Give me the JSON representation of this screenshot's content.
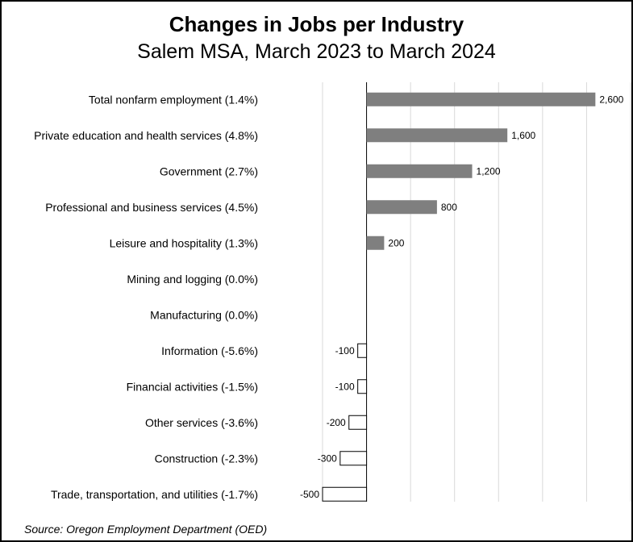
{
  "chart_data": {
    "type": "bar",
    "orientation": "horizontal",
    "title": "Changes in Jobs per Industry",
    "subtitle": "Salem MSA, March 2023 to March 2024",
    "source": "Source: Oregon Employment Department (OED)",
    "categories": [
      "Total nonfarm employment (1.4%)",
      "Private education and health services (4.8%)",
      "Government (2.7%)",
      "Professional and business services (4.5%)",
      "Leisure and hospitality (1.3%)",
      "Mining and logging (0.0%)",
      "Manufacturing (0.0%)",
      "Information (-5.6%)",
      "Financial activities (-1.5%)",
      "Other services (-3.6%)",
      "Construction (-2.3%)",
      "Trade, transportation, and utilities (-1.7%)"
    ],
    "values": [
      2600,
      1600,
      1200,
      800,
      200,
      0,
      0,
      -100,
      -100,
      -200,
      -300,
      -500
    ],
    "value_labels": [
      "2,600",
      "1,600",
      "1,200",
      "800",
      "200",
      "",
      "",
      "-100",
      "-100",
      "-200",
      "-300",
      "-500"
    ],
    "xlim": [
      -500,
      3000
    ],
    "grid": true,
    "colors": {
      "positive": "#7f7f7f",
      "negative": "#ffffff",
      "outline": "#000000",
      "grid": "#d9d9d9"
    }
  }
}
